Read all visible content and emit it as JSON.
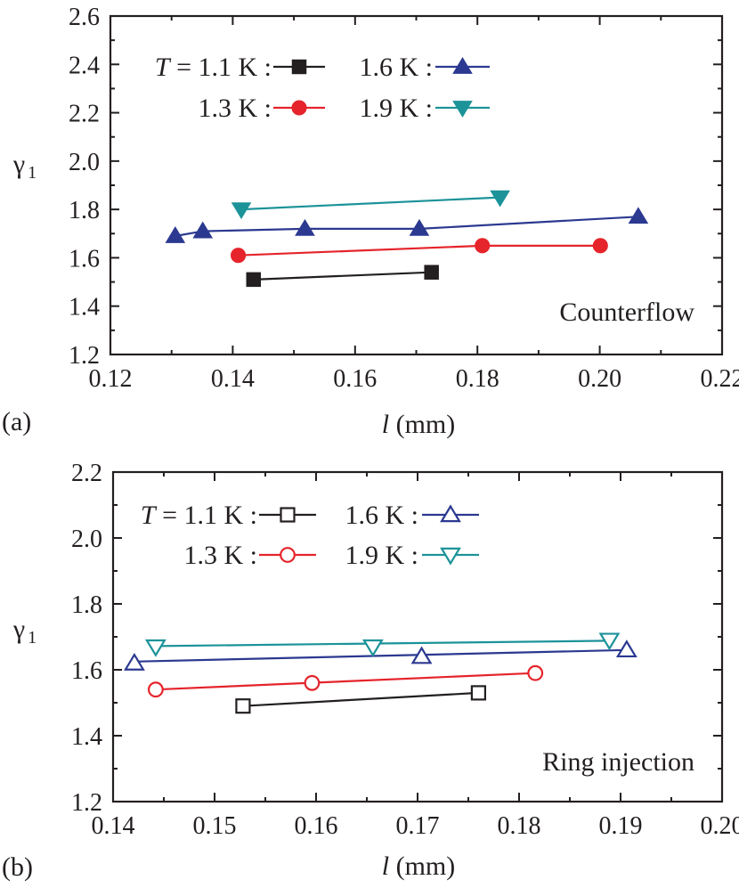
{
  "chart_data": [
    {
      "type": "line",
      "panel_label": "(a)",
      "annotation": "Counterflow",
      "xlabel_var": "l",
      "xlabel_unit": " (mm)",
      "ylabel": "γ",
      "ylabel_sub": "1",
      "xlim": [
        0.12,
        0.22
      ],
      "ylim": [
        1.2,
        2.6
      ],
      "x_ticks": [
        "0.12",
        "0.14",
        "0.16",
        "0.18",
        "0.20",
        "0.22"
      ],
      "y_ticks": [
        "1.2",
        "1.4",
        "1.6",
        "1.8",
        "2.0",
        "2.2",
        "2.4",
        "2.6"
      ],
      "legend_prefix_var": "T",
      "legend_prefix_eq": " = ",
      "series": [
        {
          "name": "1.1 K :",
          "color": "#231f20",
          "marker": "square",
          "filled": true,
          "x": [
            0.1434,
            0.1725
          ],
          "y": [
            1.51,
            1.54
          ],
          "fit": [
            [
              0.1434,
              1.51
            ],
            [
              0.1725,
              1.54
            ]
          ]
        },
        {
          "name": "1.3 K :",
          "color": "#e5242b",
          "marker": "circle",
          "filled": true,
          "x": [
            0.1409,
            0.1808,
            0.2001
          ],
          "y": [
            1.61,
            1.65,
            1.65
          ],
          "fit": [
            [
              0.1409,
              1.61
            ],
            [
              0.1808,
              1.65
            ],
            [
              0.2001,
              1.65
            ]
          ]
        },
        {
          "name": "1.6 K :",
          "color": "#2b3990",
          "marker": "triangle-up",
          "filled": true,
          "x": [
            0.1306,
            0.1351,
            0.1518,
            0.1705,
            0.2063
          ],
          "y": [
            1.69,
            1.71,
            1.72,
            1.72,
            1.77
          ],
          "fit": [
            [
              0.1306,
              1.69
            ],
            [
              0.1351,
              1.71
            ],
            [
              0.1518,
              1.72
            ],
            [
              0.1705,
              1.72
            ],
            [
              0.2063,
              1.77
            ]
          ]
        },
        {
          "name": "1.9 K :",
          "color": "#1c9399",
          "marker": "triangle-down",
          "filled": true,
          "x": [
            0.1414,
            0.1837
          ],
          "y": [
            1.8,
            1.85
          ],
          "fit": [
            [
              0.1414,
              1.8
            ],
            [
              0.1837,
              1.85
            ]
          ]
        }
      ]
    },
    {
      "type": "line",
      "panel_label": "(b)",
      "annotation": "Ring injection",
      "xlabel_var": "l",
      "xlabel_unit": " (mm)",
      "ylabel": "γ",
      "ylabel_sub": "1",
      "xlim": [
        0.14,
        0.2
      ],
      "ylim": [
        1.2,
        2.2
      ],
      "x_ticks": [
        "0.14",
        "0.15",
        "0.16",
        "0.17",
        "0.18",
        "0.19",
        "0.20"
      ],
      "y_ticks": [
        "1.2",
        "1.4",
        "1.6",
        "1.8",
        "2.0",
        "2.2"
      ],
      "legend_prefix_var": "T",
      "legend_prefix_eq": " = ",
      "series": [
        {
          "name": "1.1 K :",
          "color": "#231f20",
          "marker": "square",
          "filled": false,
          "x": [
            0.1528,
            0.176
          ],
          "y": [
            1.49,
            1.53
          ],
          "fit": [
            [
              0.1528,
              1.49
            ],
            [
              0.176,
              1.53
            ]
          ]
        },
        {
          "name": "1.3 K :",
          "color": "#e5242b",
          "marker": "circle",
          "filled": false,
          "x": [
            0.1442,
            0.1596,
            0.1816
          ],
          "y": [
            1.54,
            1.56,
            1.59
          ],
          "fit": [
            [
              0.1442,
              1.54
            ],
            [
              0.1816,
              1.59
            ]
          ]
        },
        {
          "name": "1.6 K :",
          "color": "#2b3990",
          "marker": "triangle-up",
          "filled": false,
          "x": [
            0.1421,
            0.1704,
            0.1906
          ],
          "y": [
            1.62,
            1.64,
            1.66
          ],
          "fit": [
            [
              0.1421,
              1.625
            ],
            [
              0.1906,
              1.66
            ]
          ]
        },
        {
          "name": "1.9 K :",
          "color": "#1c9399",
          "marker": "triangle-down",
          "filled": false,
          "x": [
            0.1442,
            0.1656,
            0.1889
          ],
          "y": [
            1.67,
            1.67,
            1.69
          ],
          "fit": [
            [
              0.1442,
              1.672
            ],
            [
              0.1889,
              1.688
            ]
          ]
        }
      ]
    }
  ]
}
